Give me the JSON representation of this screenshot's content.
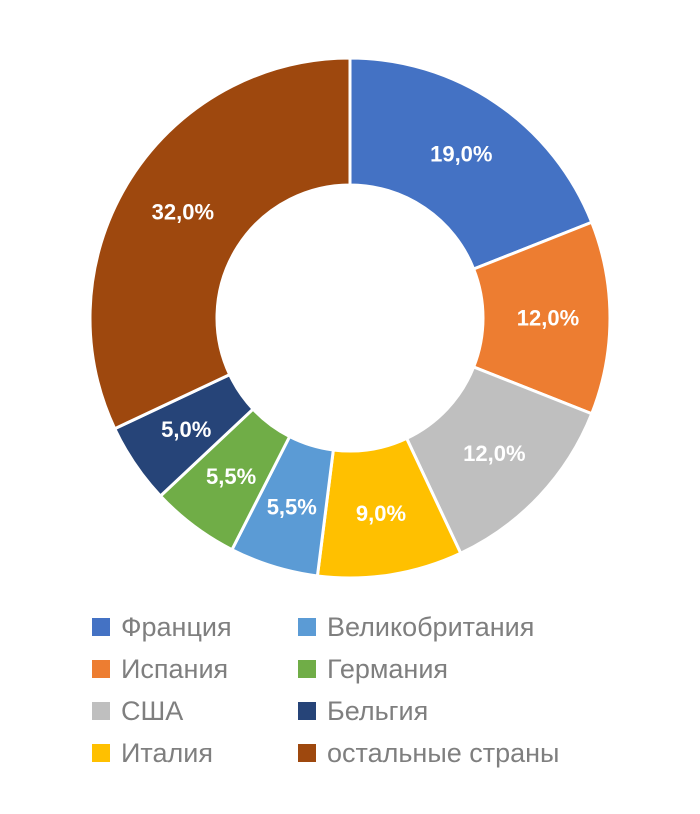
{
  "chart_data": {
    "type": "pie",
    "donut": true,
    "title": "",
    "legend_position": "bottom",
    "series": [
      {
        "label": "Франция",
        "value": 19.0,
        "display": "19,0%",
        "color": "#4472C4"
      },
      {
        "label": "Испания",
        "value": 12.0,
        "display": "12,0%",
        "color": "#ED7D31"
      },
      {
        "label": "США",
        "value": 12.0,
        "display": "12,0%",
        "color": "#BFBFBF"
      },
      {
        "label": "Италия",
        "value": 9.0,
        "display": "9,0%",
        "color": "#FFC000"
      },
      {
        "label": "Великобритания",
        "value": 5.5,
        "display": "5,5%",
        "color": "#5B9BD5"
      },
      {
        "label": "Германия",
        "value": 5.5,
        "display": "5,5%",
        "color": "#70AD47"
      },
      {
        "label": "Бельгия",
        "value": 5.0,
        "display": "5,0%",
        "color": "#264478"
      },
      {
        "label": "остальные страны",
        "value": 32.0,
        "display": "32,0%",
        "color": "#9E480E"
      }
    ],
    "legend_order": [
      "Франция",
      "Великобритания",
      "Испания",
      "Германия",
      "США",
      "Бельгия",
      "Италия",
      "остальные страны"
    ]
  }
}
